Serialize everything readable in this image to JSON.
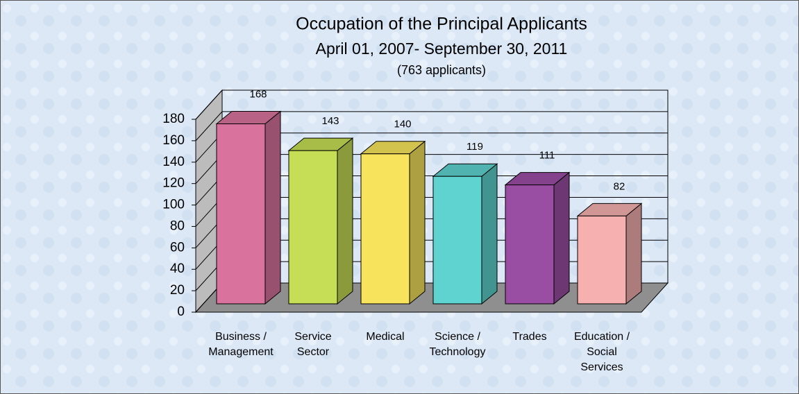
{
  "chart_data": {
    "type": "bar3d",
    "title": "Occupation of the Principal Applicants",
    "subtitle": "April 01, 2007- September 30, 2011",
    "note": "(763 applicants)",
    "categories": [
      [
        "Business /",
        "Management"
      ],
      [
        "Service",
        "Sector"
      ],
      [
        "Medical"
      ],
      [
        "Science /",
        "Technology"
      ],
      [
        "Trades"
      ],
      [
        "Education /",
        "Social",
        "Services"
      ]
    ],
    "values": [
      168,
      143,
      140,
      119,
      111,
      82
    ],
    "colors": [
      "#d9739e",
      "#c6de55",
      "#f7e45c",
      "#5ed3cf",
      "#9a4ea3",
      "#f6b0b0"
    ],
    "ylim": [
      0,
      180
    ],
    "yticks": [
      0,
      20,
      40,
      60,
      80,
      100,
      120,
      140,
      160,
      180
    ],
    "grid": true
  }
}
